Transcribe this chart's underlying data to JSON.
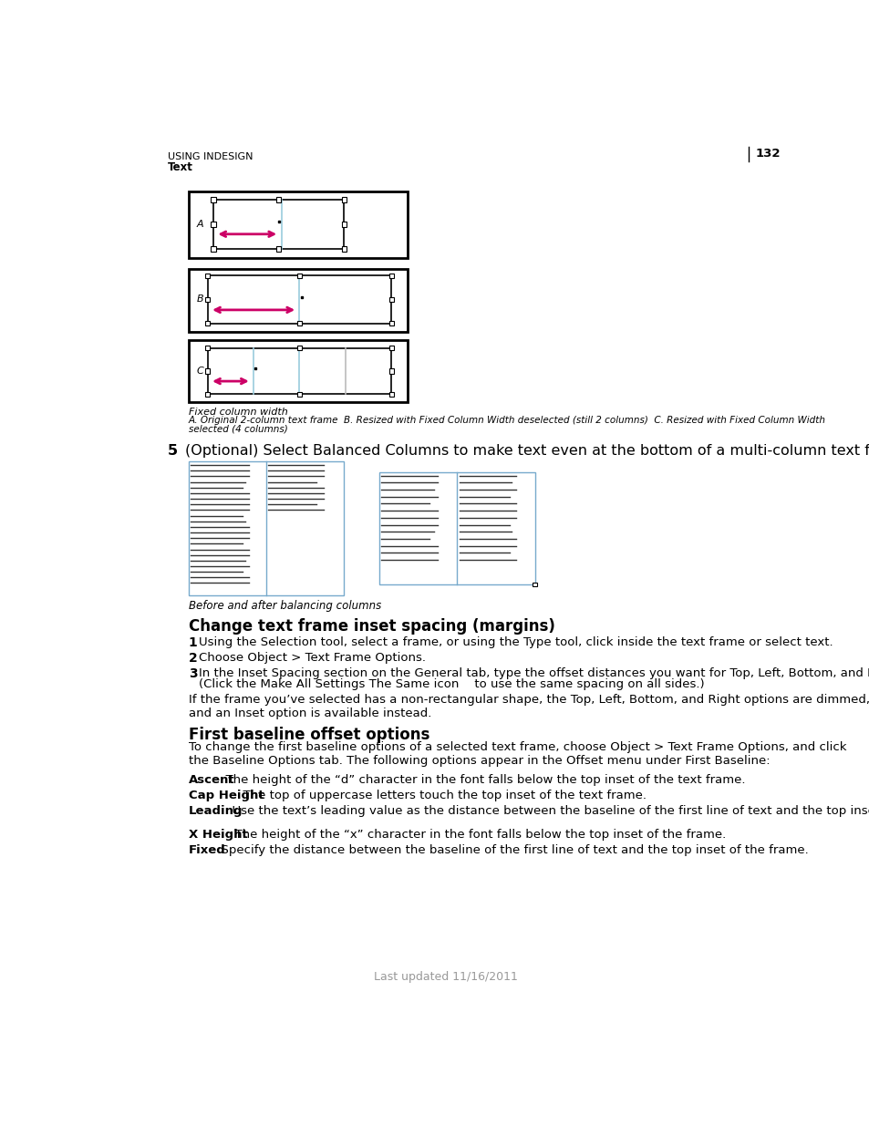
{
  "page_number": "132",
  "header_line1": "USING INDESIGN",
  "header_line2": "Text",
  "bg_color": "#ffffff",
  "diagram_caption": "Fixed column width",
  "diagram_caption2a": "A. Original 2-column text frame  B. Resized with Fixed Column Width deselected (still 2 columns)  C. Resized with Fixed Column Width",
  "diagram_caption2b": "selected (4 columns)",
  "step5_label": "5",
  "step5_text": "(Optional) Select Balanced Columns to make text even at the bottom of a multi-column text frame.",
  "columns_caption": "Before and after balancing columns",
  "section1_title": "Change text frame inset spacing (margins)",
  "step1_num": "1",
  "step1_text": "Using the Selection tool, select a frame, or using the Type tool, click inside the text frame or select text.",
  "step2_num": "2",
  "step2_text": "Choose Object > Text Frame Options.",
  "step3_num": "3",
  "step3_text": "In the Inset Spacing section on the General tab, type the offset distances you want for Top, Left, Bottom, and Right.",
  "step3_text2": "(Click the Make All Settings The Same icon    to use the same spacing on all sides.)",
  "para_text": "If the frame you’ve selected has a non-rectangular shape, the Top, Left, Bottom, and Right options are dimmed, and an Inset option is available instead.",
  "section2_title": "First baseline offset options",
  "section2_intro": "To change the first baseline options of a selected text frame, choose Object > Text Frame Options, and click the Baseline Options tab. The following options appear in the Offset menu under First Baseline:",
  "ascent_bold": "Ascent",
  "ascent_text": "  The height of the “d” character in the font falls below the top inset of the text frame.",
  "capheight_bold": "Cap Height",
  "capheight_text": "  The top of uppercase letters touch the top inset of the text frame.",
  "leading_bold": "Leading",
  "leading_text": "  Use the text’s leading value as the distance between the baseline of the first line of text and the top inset of the frame.",
  "xheight_bold": "X Height",
  "xheight_text": "  The height of the “x” character in the font falls below the top inset of the frame.",
  "fixed_bold": "Fixed",
  "fixed_text": "  Specify the distance between the baseline of the first line of text and the top inset of the frame.",
  "footer_text": "Last updated 11/16/2011",
  "arrow_color": "#cc0066",
  "cyan_color": "#99ccdd",
  "frame_color": "#000000",
  "text_gray": "#555555",
  "cyan_border": "#77aacc"
}
